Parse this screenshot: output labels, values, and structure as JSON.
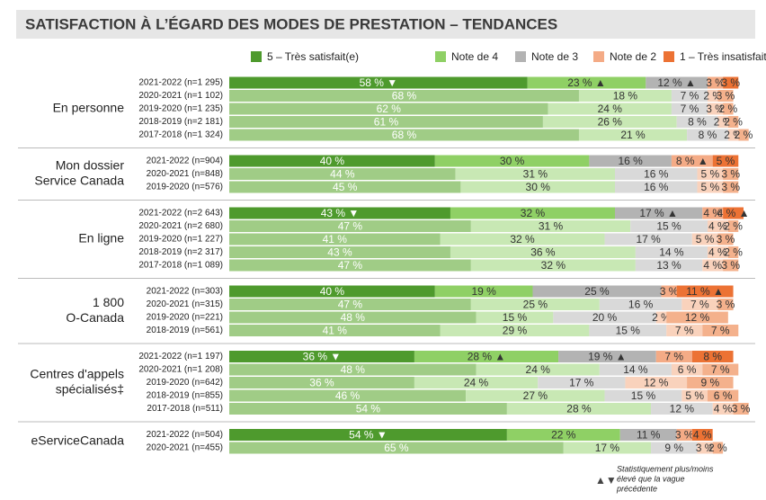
{
  "chart_data": {
    "type": "bar",
    "orientation": "horizontal",
    "stacked": true,
    "title": "SATISFACTION À L’ÉGARD DES MODES DE PRESTATION – TENDANCES",
    "xlim": [
      0,
      100
    ],
    "series": [
      {
        "name": "5 – Très satisfait(e)",
        "color": "#4e9a2d",
        "light_color": "#a0cc86"
      },
      {
        "name": "Note de 4",
        "color": "#8fd065",
        "light_color": "#c8e8b4"
      },
      {
        "name": "Note de 3",
        "color": "#b3b3b3",
        "light_color": "#d9d9d9"
      },
      {
        "name": "Note de 2",
        "color": "#f4ab86",
        "light_color": "#f9d2bc"
      },
      {
        "name": "1 – Très insatisfait(e)",
        "color": "#ec7234",
        "light_color": "#f4b18c"
      }
    ],
    "groups": [
      {
        "name": [
          "En personne"
        ],
        "categories": [
          "2021-2022 (n=1 295)",
          "2020-2021 (n=1 102)",
          "2019-2020 (n=1 235)",
          "2018-2019 (n=2 181)",
          "2017-2018 (n=1 324)"
        ],
        "values": [
          [
            58,
            23,
            12,
            3,
            3
          ],
          [
            68,
            18,
            7,
            2,
            3
          ],
          [
            62,
            24,
            7,
            3,
            2
          ],
          [
            61,
            26,
            8,
            2,
            2
          ],
          [
            68,
            21,
            8,
            2,
            2
          ]
        ],
        "value_labels": [
          [
            "58 % ▼",
            "23 % ▲",
            "12 % ▲",
            "3 %",
            "3 %"
          ],
          [
            "68 %",
            "18 %",
            "7 %",
            "2 %",
            "3 %"
          ],
          [
            "62 %",
            "24 %",
            "7 %",
            "3 %",
            "2 %"
          ],
          [
            "61 %",
            "26 %",
            "8 %",
            "2 %",
            "2 %"
          ],
          [
            "68 %",
            "21 %",
            "8 %",
            "2 %",
            "2 %"
          ]
        ]
      },
      {
        "name": [
          "Mon dossier",
          "Service Canada"
        ],
        "categories": [
          "2021-2022 (n=904)",
          "2020-2021 (n=848)",
          "2019-2020 (n=576)"
        ],
        "values": [
          [
            40,
            30,
            16,
            8,
            5
          ],
          [
            44,
            31,
            16,
            5,
            3
          ],
          [
            45,
            30,
            16,
            5,
            3
          ]
        ],
        "value_labels": [
          [
            "40 %",
            "30 %",
            "16 %",
            "8 % ▲",
            "5 %"
          ],
          [
            "44 %",
            "31 %",
            "16 %",
            "5 %",
            "3 %"
          ],
          [
            "45 %",
            "30 %",
            "16 %",
            "5 %",
            "3 %"
          ]
        ]
      },
      {
        "name": [
          "En ligne"
        ],
        "categories": [
          "2021-2022 (n=2 643)",
          "2020-2021 (n=2 680)",
          "2019-2020 (n=1 227)",
          "2018-2019 (n=2 317)",
          "2017-2018 (n=1 089)"
        ],
        "values": [
          [
            43,
            32,
            17,
            4,
            4
          ],
          [
            47,
            31,
            15,
            4,
            2
          ],
          [
            41,
            32,
            17,
            5,
            3
          ],
          [
            43,
            36,
            14,
            4,
            2
          ],
          [
            47,
            32,
            13,
            4,
            3
          ]
        ],
        "value_labels": [
          [
            "43 % ▼",
            "32 %",
            "17 % ▲",
            "4 %",
            "4 % ▲"
          ],
          [
            "47 %",
            "31 %",
            "15 %",
            "4 %",
            "2 %"
          ],
          [
            "41 %",
            "32 %",
            "17 %",
            "5 %",
            "3 %"
          ],
          [
            "43 %",
            "36 %",
            "14 %",
            "4 %",
            "2 %"
          ],
          [
            "47 %",
            "32 %",
            "13 %",
            "4 %",
            "3 %"
          ]
        ]
      },
      {
        "name": [
          "1 800",
          "O-Canada"
        ],
        "categories": [
          "2021-2022 (n=303)",
          "2020-2021 (n=315)",
          "2019-2020 (n=221)",
          "2018-2019 (n=561)"
        ],
        "values": [
          [
            40,
            19,
            25,
            3,
            11
          ],
          [
            47,
            25,
            16,
            7,
            3
          ],
          [
            48,
            15,
            20,
            2,
            12
          ],
          [
            41,
            29,
            15,
            7,
            7
          ]
        ],
        "value_labels": [
          [
            "40 %",
            "19 %",
            "25 %",
            "3 %",
            "11 % ▲"
          ],
          [
            "47 %",
            "25 %",
            "16 %",
            "7 %",
            "3 %"
          ],
          [
            "48 %",
            "15 %",
            "20 %",
            "2 %",
            "12 %"
          ],
          [
            "41 %",
            "29 %",
            "15 %",
            "7 %",
            "7 %"
          ]
        ]
      },
      {
        "name": [
          "Centres d'appels",
          "spécialisés‡"
        ],
        "categories": [
          "2021-2022 (n=1 197)",
          "2020-2021 (n=1 208)",
          "2019-2020 (n=642)",
          "2018-2019 (n=855)",
          "2017-2018 (n=511)"
        ],
        "values": [
          [
            36,
            28,
            19,
            7,
            8
          ],
          [
            48,
            24,
            14,
            6,
            7
          ],
          [
            36,
            24,
            17,
            12,
            9
          ],
          [
            46,
            27,
            15,
            5,
            6
          ],
          [
            54,
            28,
            12,
            4,
            3
          ]
        ],
        "value_labels": [
          [
            "36 % ▼",
            "28 % ▲",
            "19 % ▲",
            "7 %",
            "8 %"
          ],
          [
            "48 %",
            "24 %",
            "14 %",
            "6 %",
            "7 %"
          ],
          [
            "36 %",
            "24 %",
            "17 %",
            "12 %",
            "9 %"
          ],
          [
            "46 %",
            "27 %",
            "15 %",
            "5 %",
            "6 %"
          ],
          [
            "54 %",
            "28 %",
            "12 %",
            "4 %",
            "3 %"
          ]
        ]
      },
      {
        "name": [
          "eServiceCanada"
        ],
        "categories": [
          "2021-2022 (n=504)",
          "2020-2021 (n=455)"
        ],
        "values": [
          [
            54,
            22,
            11,
            3,
            4
          ],
          [
            65,
            17,
            9,
            3,
            2
          ]
        ],
        "value_labels": [
          [
            "54 % ▼",
            "22 %",
            "11 %",
            "3 %",
            "4 %"
          ],
          [
            "65 %",
            "17 %",
            "9 %",
            "3 %",
            "2 %"
          ]
        ]
      }
    ],
    "note_marker": "▲▼",
    "note": [
      "Statistiquement plus/moins",
      "élevé que la vague",
      "précédente"
    ]
  }
}
